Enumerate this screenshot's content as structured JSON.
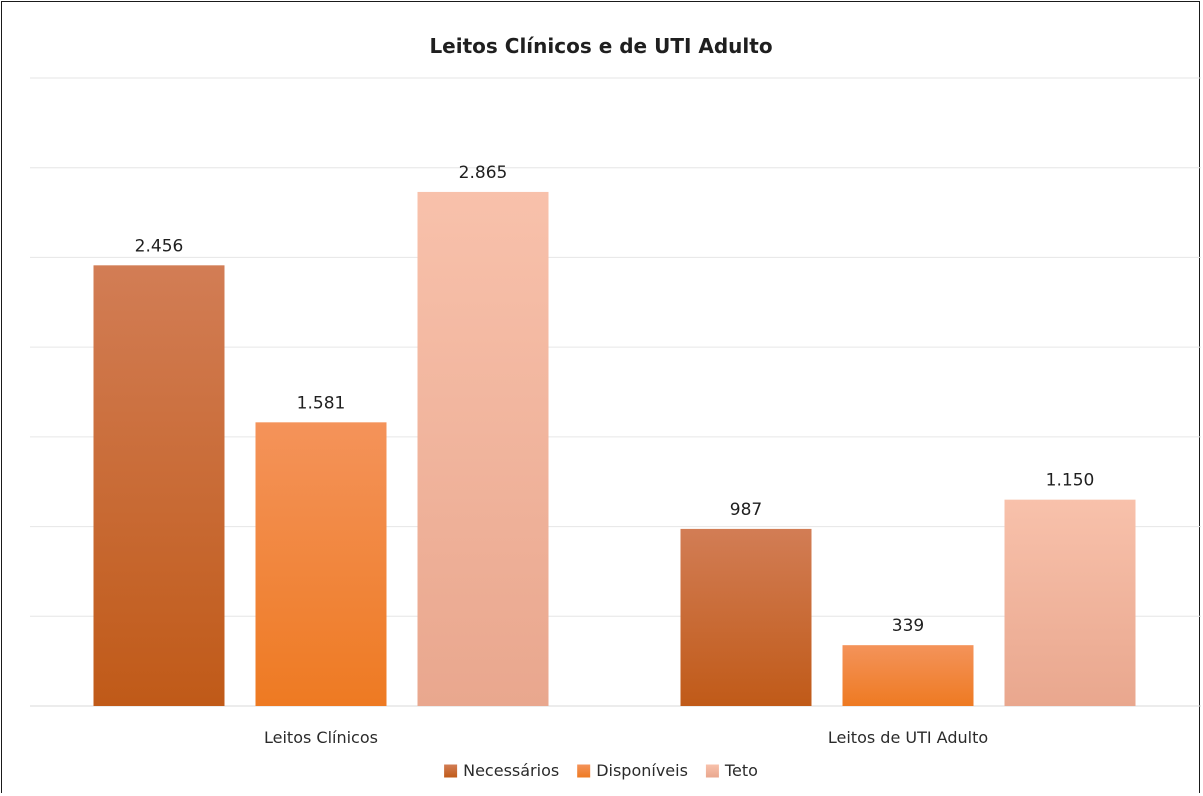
{
  "chart_data": {
    "type": "bar",
    "title": "Leitos Clínicos e de UTI Adulto",
    "xlabel": "",
    "ylabel": "",
    "categories": [
      "Leitos Clínicos",
      "Leitos de UTI Adulto"
    ],
    "series": [
      {
        "name": "Necessários",
        "values": [
          2456,
          987
        ],
        "labels": [
          "2.456",
          "987"
        ],
        "color_top": "#d27d55",
        "color_bottom": "#c05a18"
      },
      {
        "name": "Disponíveis",
        "values": [
          1581,
          339
        ],
        "labels": [
          "1.581",
          "339"
        ],
        "color_top": "#f4935a",
        "color_bottom": "#ee7a22"
      },
      {
        "name": "Teto",
        "values": [
          2865,
          1150
        ],
        "labels": [
          "2.865",
          "1.150"
        ],
        "color_top": "#f8c1ab",
        "color_bottom": "#e9a78e"
      }
    ],
    "ylim": [
      0,
      3500
    ],
    "grid": true,
    "legend": "bottom"
  }
}
